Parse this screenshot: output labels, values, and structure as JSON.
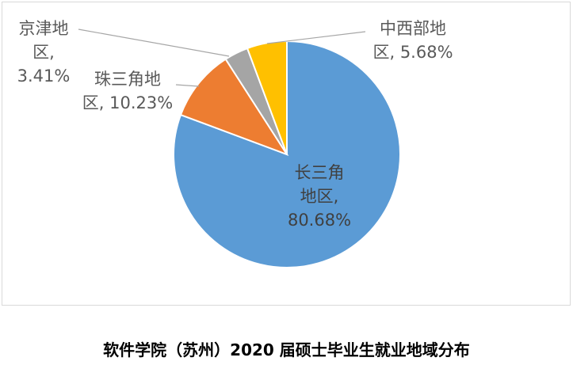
{
  "caption": "软件学院（苏州）2020 届硕士毕业生就业地域分布",
  "chart_data": {
    "type": "pie",
    "title": "",
    "legend": "none",
    "slices": [
      {
        "name": "长三角地区",
        "value": 80.68,
        "label_lines": [
          "长三角",
          "地区,",
          "80.68%"
        ],
        "color": "#5b9bd5"
      },
      {
        "name": "珠三角地区",
        "value": 10.23,
        "label_lines": [
          "珠三角地",
          "区, 10.23%"
        ],
        "color": "#ed7d31"
      },
      {
        "name": "京津地区",
        "value": 3.41,
        "label_lines": [
          "京津地",
          "区,",
          "3.41%"
        ],
        "color": "#a5a5a5"
      },
      {
        "name": "中西部地区",
        "value": 5.68,
        "label_lines": [
          "中西部地",
          "区, 5.68%"
        ],
        "color": "#ffc000"
      }
    ]
  }
}
